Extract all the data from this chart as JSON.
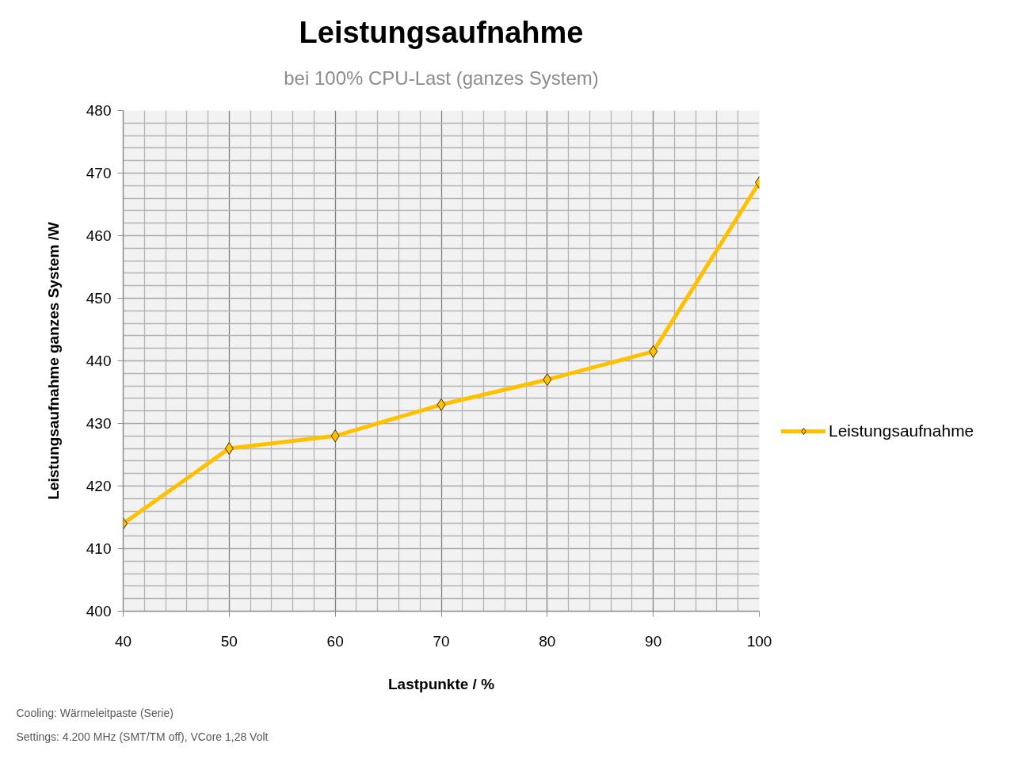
{
  "chart_data": {
    "type": "line",
    "title": "Leistungsaufnahme",
    "subtitle": "bei 100% CPU-Last (ganzes System)",
    "xlabel": "Lastpunkte / %",
    "ylabel": "Leistungsaufnahme ganzes System /W",
    "x": [
      40,
      50,
      60,
      70,
      80,
      90,
      100
    ],
    "series": [
      {
        "name": "Leistungsaufnahme",
        "color": "#ffc000",
        "values": [
          414,
          426,
          428,
          433,
          437,
          441.5,
          468.5
        ]
      }
    ],
    "xlim": [
      40,
      100
    ],
    "xticks": [
      40,
      50,
      60,
      70,
      80,
      90,
      100
    ],
    "ylim": [
      400,
      480
    ],
    "yticks": [
      400,
      410,
      420,
      430,
      440,
      450,
      460,
      470,
      480
    ],
    "grid": true,
    "legend": "right",
    "marker": "diamond",
    "line_style": "solid",
    "annotations": [
      "Cooling: Wärmeleitpaste (Serie)",
      "Settings: 4.200 MHz (SMT/TM off), VCore 1,28 Volt"
    ]
  }
}
